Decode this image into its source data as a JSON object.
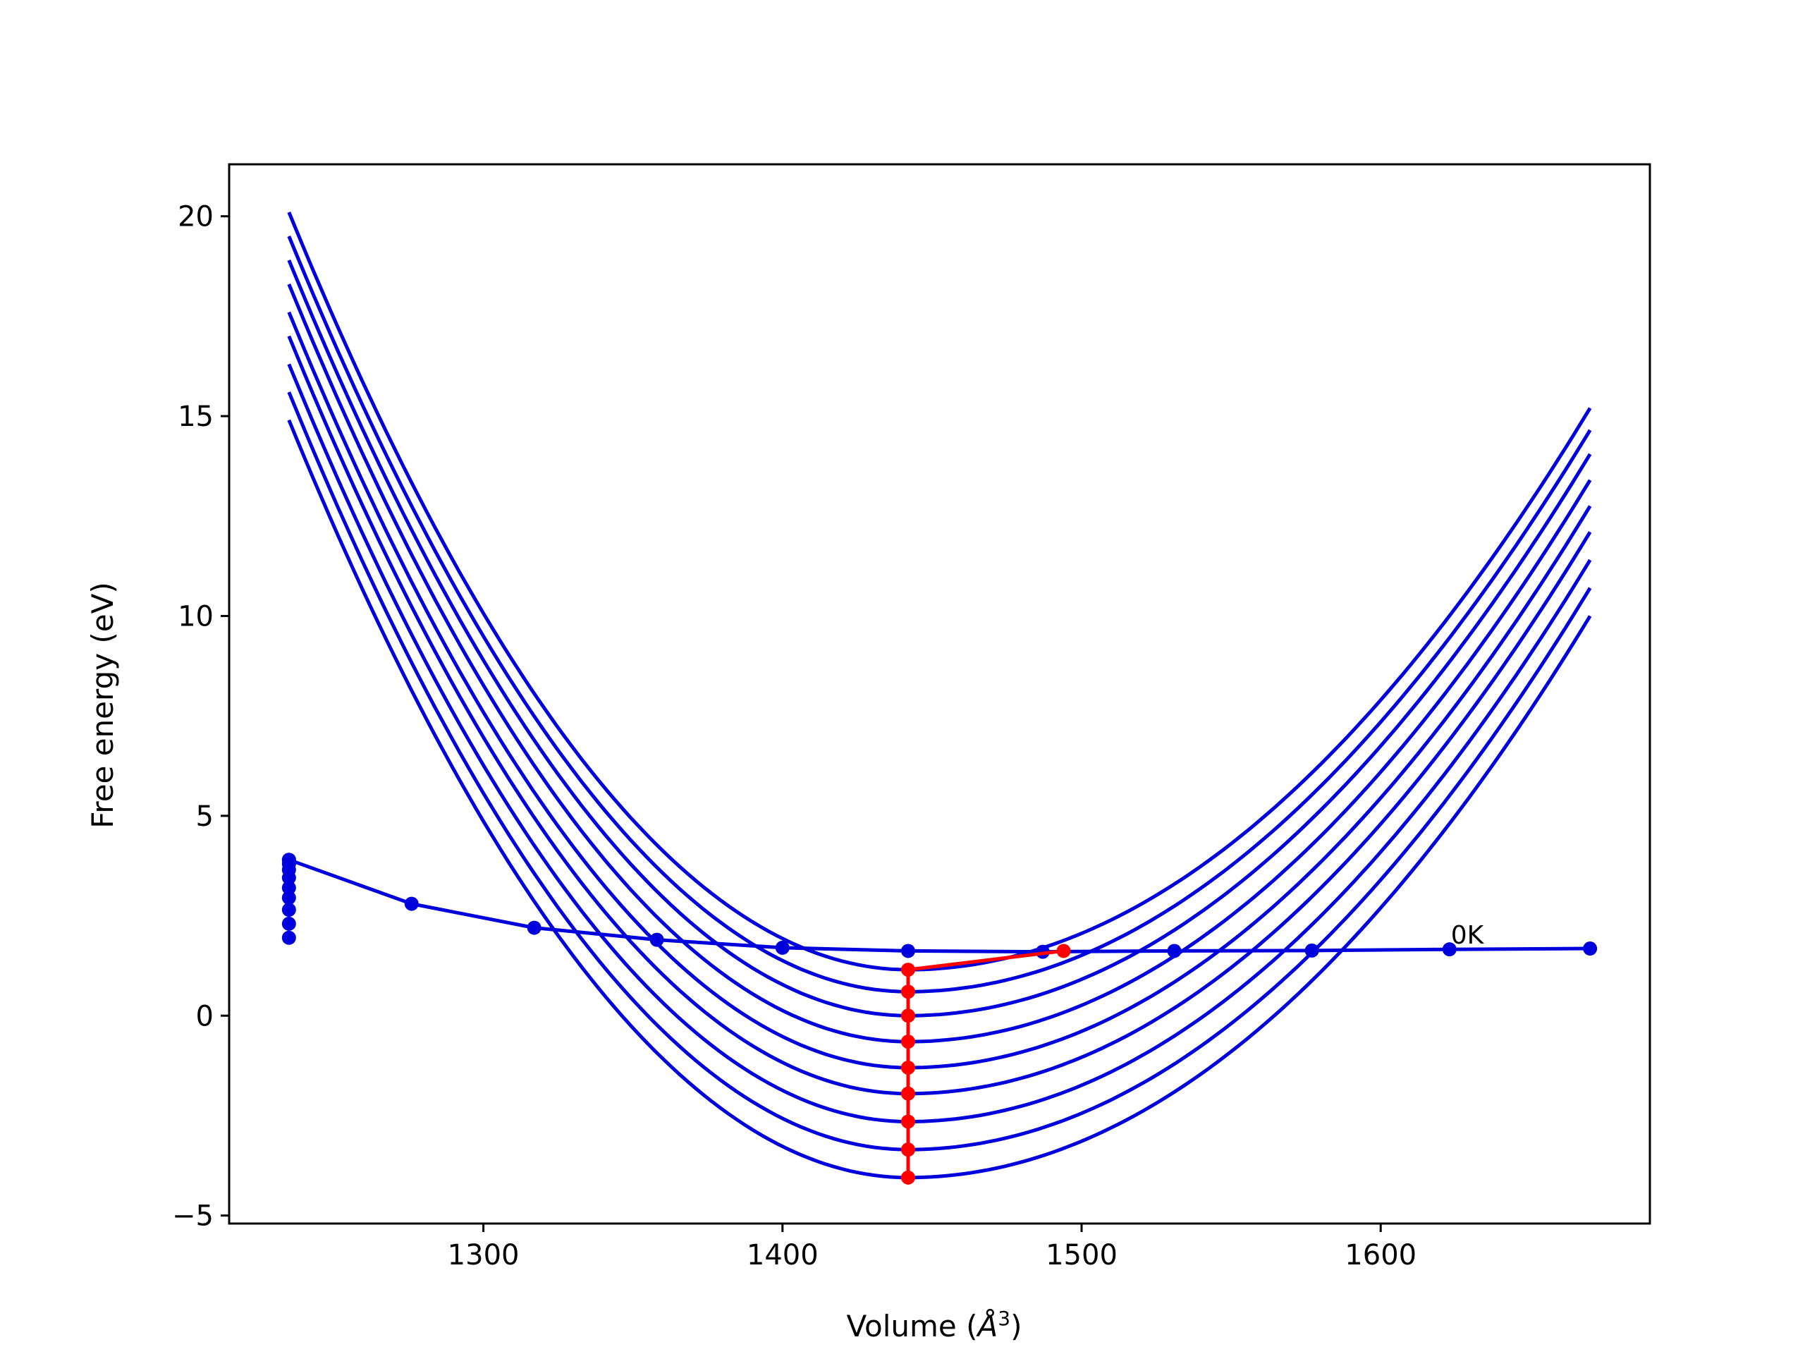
{
  "chart_data": {
    "type": "line",
    "xlabel_main": "Volume (",
    "xlabel_unit": "Å",
    "xlabel_exp": "3",
    "xlabel_close": ")",
    "ylabel": "Free energy (eV)",
    "xlim": [
      1215,
      1690
    ],
    "ylim": [
      -5.2,
      21.3
    ],
    "xticks": [
      1300,
      1400,
      1500,
      1600
    ],
    "xtick_labels": [
      "1300",
      "1400",
      "1500",
      "1600"
    ],
    "yticks": [
      -5,
      0,
      5,
      10,
      15,
      20
    ],
    "ytick_labels": [
      "−5",
      "0",
      "5",
      "10",
      "15",
      "20"
    ],
    "grid": false,
    "colors": {
      "curves": "#0000dd",
      "minima": "#ff0000",
      "axes": "#000000"
    },
    "curves": {
      "x_start": 1235,
      "x_end": 1670,
      "x_min": 1442,
      "start_values": [
        14.9,
        15.6,
        16.3,
        17.0,
        17.6,
        18.3,
        18.9,
        19.5,
        20.1
      ],
      "min_values": [
        -4.05,
        -3.35,
        -2.65,
        -1.95,
        -1.3,
        -0.65,
        0.0,
        0.6,
        1.15
      ],
      "end_values": [
        10.0,
        10.7,
        11.4,
        12.1,
        12.75,
        13.4,
        14.05,
        14.65,
        15.2
      ]
    },
    "zero_k_line": {
      "x": [
        1235,
        1276,
        1317,
        1358,
        1400,
        1442,
        1487,
        1531,
        1577,
        1623,
        1670
      ],
      "y": [
        3.9,
        2.8,
        2.2,
        1.9,
        1.7,
        1.62,
        1.6,
        1.62,
        1.63,
        1.66,
        1.68
      ],
      "stack_x": 1235,
      "stack_y": [
        1.95,
        2.3,
        2.65,
        2.95,
        3.2,
        3.45,
        3.65,
        3.8,
        3.9
      ]
    },
    "minima_path": {
      "x": [
        1442,
        1442,
        1442,
        1442,
        1442,
        1442,
        1442,
        1442,
        1442,
        1494
      ],
      "y": [
        -4.05,
        -3.35,
        -2.65,
        -1.95,
        -1.3,
        -0.65,
        0.0,
        0.6,
        1.15,
        1.62
      ]
    },
    "annotation": {
      "text": "0K",
      "x": 1623,
      "y": 1.66
    }
  }
}
